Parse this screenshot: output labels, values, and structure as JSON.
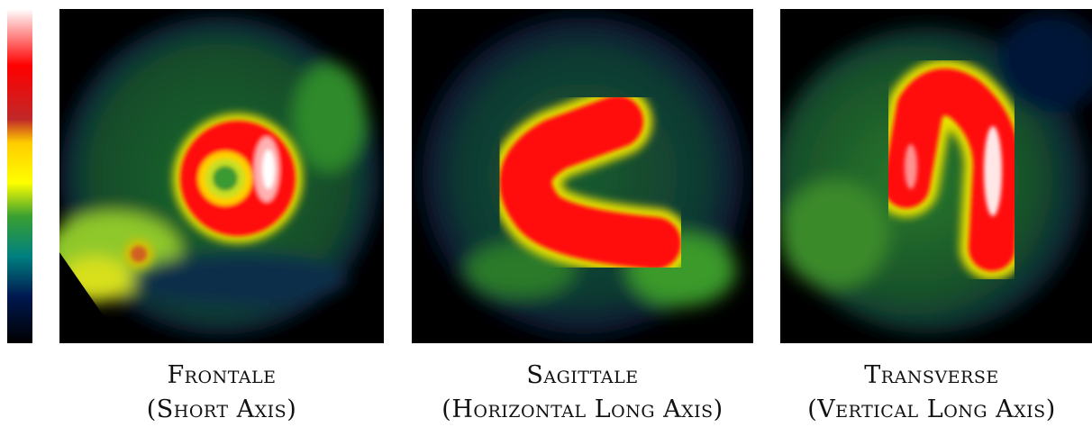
{
  "colorbar": {
    "colors": [
      "#ffffff",
      "#ff0000",
      "#cc2222",
      "#ffd000",
      "#ffff00",
      "#44aa22",
      "#008888",
      "#002266",
      "#000000"
    ]
  },
  "panels": [
    {
      "title": "Frontale",
      "subtitle": "(Short Axis)"
    },
    {
      "title": "Sagittale",
      "subtitle": "(Horizontal Long Axis)"
    },
    {
      "title": "Transverse",
      "subtitle": "(Vertical Long Axis)"
    }
  ]
}
